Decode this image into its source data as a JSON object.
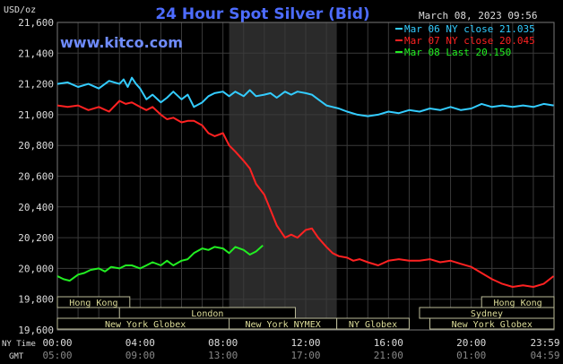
{
  "chart_data": {
    "type": "line",
    "title": "24 Hour Spot Silver (Bid)",
    "source": "www.kitco.com",
    "timestamp": "March 08, 2023 09:56",
    "ylabel": "USD/oz",
    "ylim": [
      19.6,
      21.6
    ],
    "y_ticks": [
      "21,600",
      "21,400",
      "21,200",
      "21,000",
      "20,800",
      "20,600",
      "20,400",
      "20,200",
      "20,000",
      "19,800",
      "19,600"
    ],
    "x_ticks": [
      "00:00",
      "04:00",
      "08:00",
      "12:00",
      "16:00",
      "20:00",
      "23:59"
    ],
    "gmt_ticks": [
      "05:00",
      "09:00",
      "13:00",
      "17:00",
      "21:00",
      "01:00",
      "04:59"
    ],
    "x_row_labels": [
      "NY Time",
      "GMT"
    ],
    "xlim_hours": [
      0,
      24
    ],
    "grid": true,
    "legend_position": "top-right",
    "highlight_window_hours": [
      8.3,
      13.5
    ],
    "series": [
      {
        "name": "Mar 06 NY close 21.035",
        "color": "#33ccff",
        "x": [
          0,
          0.5,
          1,
          1.5,
          2,
          2.5,
          3,
          3.2,
          3.4,
          3.6,
          3.8,
          4,
          4.3,
          4.6,
          5,
          5.3,
          5.6,
          6,
          6.3,
          6.6,
          7,
          7.3,
          7.6,
          8,
          8.3,
          8.6,
          9,
          9.3,
          9.6,
          10,
          10.3,
          10.6,
          11,
          11.3,
          11.6,
          12,
          12.3,
          12.6,
          13,
          13.3,
          13.6,
          14,
          14.5,
          15,
          15.5,
          16,
          16.5,
          17,
          17.5,
          18,
          18.5,
          19,
          19.5,
          20,
          20.5,
          21,
          21.5,
          22,
          22.5,
          23,
          23.5,
          23.98
        ],
        "y": [
          21.2,
          21.21,
          21.18,
          21.2,
          21.17,
          21.22,
          21.2,
          21.23,
          21.18,
          21.24,
          21.2,
          21.17,
          21.1,
          21.13,
          21.08,
          21.11,
          21.15,
          21.1,
          21.13,
          21.05,
          21.08,
          21.12,
          21.14,
          21.15,
          21.12,
          21.15,
          21.12,
          21.16,
          21.12,
          21.13,
          21.14,
          21.11,
          21.15,
          21.13,
          21.15,
          21.14,
          21.13,
          21.1,
          21.06,
          21.05,
          21.04,
          21.02,
          21.0,
          20.99,
          21.0,
          21.02,
          21.01,
          21.03,
          21.02,
          21.04,
          21.03,
          21.05,
          21.03,
          21.04,
          21.07,
          21.05,
          21.06,
          21.05,
          21.06,
          21.05,
          21.07,
          21.06
        ]
      },
      {
        "name": "Mar 07 NY close 20.045",
        "color": "#ff2222",
        "x": [
          0,
          0.5,
          1,
          1.5,
          2,
          2.5,
          3,
          3.3,
          3.6,
          4,
          4.3,
          4.6,
          5,
          5.3,
          5.6,
          6,
          6.3,
          6.6,
          7,
          7.3,
          7.6,
          8,
          8.3,
          8.6,
          9,
          9.3,
          9.6,
          10,
          10.3,
          10.6,
          11,
          11.3,
          11.6,
          12,
          12.3,
          12.6,
          13,
          13.3,
          13.6,
          14,
          14.3,
          14.6,
          15,
          15.5,
          16,
          16.5,
          17,
          17.5,
          18,
          18.5,
          19,
          19.5,
          20,
          20.5,
          21,
          21.5,
          22,
          22.5,
          23,
          23.5,
          23.98
        ],
        "y": [
          21.06,
          21.05,
          21.06,
          21.03,
          21.05,
          21.02,
          21.09,
          21.07,
          21.08,
          21.05,
          21.03,
          21.05,
          21.0,
          20.97,
          20.98,
          20.95,
          20.96,
          20.96,
          20.93,
          20.88,
          20.86,
          20.88,
          20.8,
          20.76,
          20.7,
          20.65,
          20.55,
          20.48,
          20.38,
          20.28,
          20.2,
          20.22,
          20.2,
          20.25,
          20.26,
          20.2,
          20.14,
          20.1,
          20.08,
          20.07,
          20.05,
          20.06,
          20.04,
          20.02,
          20.05,
          20.06,
          20.05,
          20.05,
          20.06,
          20.04,
          20.05,
          20.03,
          20.01,
          19.97,
          19.93,
          19.9,
          19.88,
          19.89,
          19.88,
          19.9,
          19.95
        ]
      },
      {
        "name": "Mar 08 Last 20.150",
        "color": "#22ee22",
        "x": [
          0,
          0.3,
          0.6,
          1,
          1.3,
          1.6,
          2,
          2.3,
          2.6,
          3,
          3.3,
          3.6,
          4,
          4.3,
          4.6,
          5,
          5.3,
          5.6,
          6,
          6.3,
          6.6,
          7,
          7.3,
          7.6,
          8,
          8.3,
          8.6,
          9,
          9.3,
          9.6,
          9.93
        ],
        "y": [
          19.95,
          19.93,
          19.92,
          19.96,
          19.97,
          19.99,
          20.0,
          19.98,
          20.01,
          20.0,
          20.02,
          20.02,
          20.0,
          20.02,
          20.04,
          20.02,
          20.05,
          20.02,
          20.05,
          20.06,
          20.1,
          20.13,
          20.12,
          20.14,
          20.13,
          20.1,
          20.14,
          20.12,
          20.09,
          20.11,
          20.15
        ]
      }
    ],
    "sessions": [
      {
        "name": "Hong Kong",
        "start": 0,
        "end": 3.5,
        "row": 0
      },
      {
        "name": "Hong Kong",
        "start": 20.5,
        "end": 24,
        "row": 0
      },
      {
        "name": "London",
        "start": 3,
        "end": 11.5,
        "row": 1
      },
      {
        "name": "Sydney",
        "start": 17.5,
        "end": 24,
        "row": 1
      },
      {
        "name": "New York Globex",
        "start": 0,
        "end": 8.5,
        "row": 2
      },
      {
        "name": "New York NYMEX",
        "start": 8.3,
        "end": 13.5,
        "row": 2
      },
      {
        "name": "NY Globex",
        "start": 13.5,
        "end": 17,
        "row": 2
      },
      {
        "name": "New York Globex",
        "start": 18,
        "end": 24,
        "row": 2
      }
    ]
  }
}
